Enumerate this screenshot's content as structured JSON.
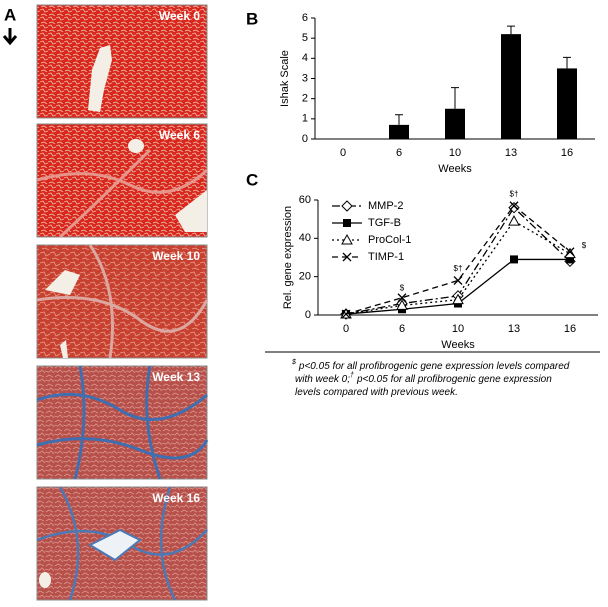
{
  "panel_labels": {
    "a": "A",
    "b": "B",
    "c": "C"
  },
  "images": [
    {
      "label": "Week 0"
    },
    {
      "label": "Week 6"
    },
    {
      "label": "Week 10"
    },
    {
      "label": "Week 13"
    },
    {
      "label": "Week 16"
    }
  ],
  "chart_data": [
    {
      "type": "bar",
      "categories": [
        "0",
        "6",
        "10",
        "13",
        "16"
      ],
      "values": [
        0,
        0.7,
        1.5,
        5.2,
        3.5
      ],
      "errors": [
        0,
        0.5,
        1.05,
        0.4,
        0.55
      ],
      "color": "#000000",
      "ylim": [
        0,
        6
      ],
      "yticks": [
        0,
        1,
        2,
        3,
        4,
        5,
        6
      ],
      "y_label": "Ishak Scale",
      "x_label": "Weeks"
    },
    {
      "type": "line",
      "categories": [
        "0",
        "6",
        "10",
        "13",
        "16"
      ],
      "series": [
        {
          "name": "MMP-2",
          "color": "#000000",
          "marker": "diamond",
          "dash": "8 3 2 3",
          "values": [
            0.5,
            6,
            10,
            56,
            28
          ]
        },
        {
          "name": "TGF-B",
          "color": "#000000",
          "marker": "square",
          "dash": "none",
          "values": [
            0.5,
            3,
            6,
            29,
            29
          ]
        },
        {
          "name": "ProCol-1",
          "color": "#000000",
          "marker": "triangle",
          "dash": "2 3",
          "values": [
            0.5,
            5,
            8,
            49,
            32
          ]
        },
        {
          "name": "TIMP-1",
          "color": "#000000",
          "marker": "x",
          "dash": "6 4",
          "values": [
            0.5,
            9,
            18,
            57,
            33
          ]
        }
      ],
      "annotations": [
        {
          "text": "$",
          "x": "6",
          "y": 14
        },
        {
          "text": "$†",
          "x": "10",
          "y": 24
        },
        {
          "text": "$†",
          "x": "13",
          "y": 63
        },
        {
          "text": "$",
          "x": "16",
          "y": 36
        }
      ],
      "ylim": [
        0,
        60
      ],
      "yticks": [
        0,
        20,
        40,
        60
      ],
      "y_label": "Rel. gene expression",
      "x_label": "Weeks",
      "legend": "top-left"
    }
  ],
  "footnote": {
    "symbol_1": "$",
    "text_1a": "p<0.05 for all profibrogenic gene expression levels compared",
    "text_1b": "with week 0;",
    "symbol_2": "†",
    "text_2a": "p<0.05 for all profibrogenic gene expression",
    "text_2b": "levels compared with previous week."
  }
}
